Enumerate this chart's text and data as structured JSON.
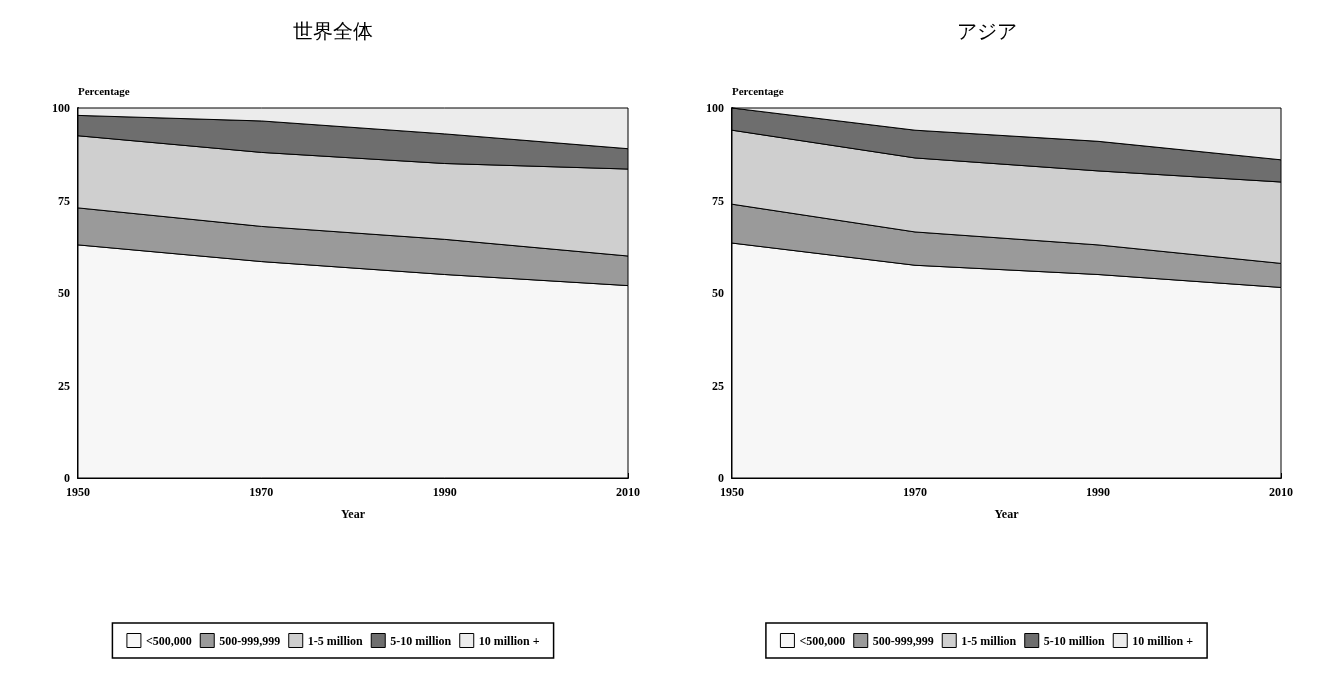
{
  "chart_data": [
    {
      "type": "area",
      "title": "世界全体",
      "xlabel": "Year",
      "ylabel": "Percentage",
      "stacked": true,
      "x": [
        1950,
        1970,
        1990,
        2010
      ],
      "xlim": [
        1950,
        2010
      ],
      "xticks": [
        1950,
        1970,
        1990,
        2010
      ],
      "ylim": [
        0,
        100
      ],
      "yticks": [
        0,
        25,
        50,
        75,
        100
      ],
      "grid": false,
      "legend": "bottom",
      "series": [
        {
          "name": "<500,000",
          "color": "#f7f7f7",
          "values": [
            63,
            58.5,
            55,
            52
          ]
        },
        {
          "name": "500-999,999",
          "color": "#9a9a9a",
          "values": [
            10,
            9.5,
            9.5,
            8
          ]
        },
        {
          "name": "1-5 million",
          "color": "#cfcfcf",
          "values": [
            19.5,
            20,
            20.5,
            23.5
          ]
        },
        {
          "name": "5-10 million",
          "color": "#6e6e6e",
          "values": [
            5.5,
            8.5,
            8,
            5.5
          ]
        },
        {
          "name": "10 million +",
          "color": "#ececec",
          "values": [
            2,
            3.5,
            7,
            11
          ]
        }
      ]
    },
    {
      "type": "area",
      "title": "アジア",
      "xlabel": "Year",
      "ylabel": "Percentage",
      "stacked": true,
      "x": [
        1950,
        1970,
        1990,
        2010
      ],
      "xlim": [
        1950,
        2010
      ],
      "xticks": [
        1950,
        1970,
        1990,
        2010
      ],
      "ylim": [
        0,
        100
      ],
      "yticks": [
        0,
        25,
        50,
        75,
        100
      ],
      "grid": false,
      "legend": "bottom",
      "series": [
        {
          "name": "<500,000",
          "color": "#f7f7f7",
          "values": [
            63.5,
            57.5,
            55,
            51.5
          ]
        },
        {
          "name": "500-999,999",
          "color": "#9a9a9a",
          "values": [
            10.5,
            9,
            8,
            6.5
          ]
        },
        {
          "name": "1-5 million",
          "color": "#cfcfcf",
          "values": [
            20,
            20,
            20,
            22
          ]
        },
        {
          "name": "5-10 million",
          "color": "#6e6e6e",
          "values": [
            6,
            7.5,
            8,
            6
          ]
        },
        {
          "name": "10 million +",
          "color": "#ececec",
          "values": [
            0,
            6,
            9,
            14
          ]
        }
      ]
    }
  ]
}
